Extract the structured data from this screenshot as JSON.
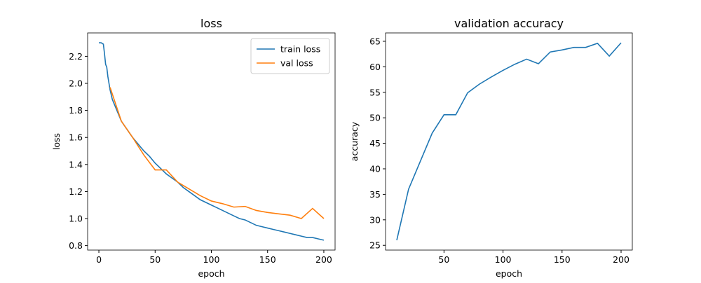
{
  "chart_data": [
    {
      "type": "line",
      "title": "loss",
      "xlabel": "epoch",
      "ylabel": "loss",
      "xlim": [
        -10,
        210
      ],
      "xticks": [
        0,
        50,
        100,
        150,
        200
      ],
      "ylim": [
        0.767,
        2.373
      ],
      "yticks": [
        0.8,
        {
          "value": 1,
          "label": "1.0"
        },
        1.2,
        1.4,
        1.6,
        1.8,
        {
          "value": 2,
          "label": "2.0"
        },
        2.2
      ],
      "legend": "upper right",
      "series": [
        {
          "name": "train loss",
          "color": "#1f77b4",
          "x": [
            0,
            2,
            4,
            5,
            6,
            7,
            8,
            10,
            12,
            15,
            20,
            25,
            30,
            35,
            40,
            45,
            50,
            55,
            60,
            65,
            70,
            75,
            80,
            85,
            90,
            95,
            100,
            105,
            110,
            115,
            120,
            125,
            130,
            135,
            140,
            145,
            150,
            155,
            160,
            165,
            170,
            175,
            180,
            185,
            190,
            195,
            200
          ],
          "values": [
            2.3,
            2.3,
            2.29,
            2.22,
            2.14,
            2.12,
            2.05,
            1.95,
            1.88,
            1.82,
            1.72,
            1.66,
            1.6,
            1.55,
            1.5,
            1.46,
            1.41,
            1.37,
            1.33,
            1.3,
            1.27,
            1.23,
            1.2,
            1.17,
            1.14,
            1.12,
            1.1,
            1.08,
            1.06,
            1.04,
            1.02,
            1.0,
            0.99,
            0.97,
            0.95,
            0.94,
            0.93,
            0.92,
            0.91,
            0.9,
            0.89,
            0.88,
            0.87,
            0.86,
            0.86,
            0.85,
            0.84
          ]
        },
        {
          "name": "val loss",
          "color": "#ff7f0e",
          "x": [
            10,
            20,
            30,
            40,
            50,
            60,
            70,
            80,
            90,
            100,
            110,
            120,
            130,
            140,
            150,
            160,
            170,
            180,
            190,
            200
          ],
          "values": [
            1.97,
            1.72,
            1.6,
            1.47,
            1.36,
            1.36,
            1.27,
            1.22,
            1.17,
            1.13,
            1.11,
            1.085,
            1.09,
            1.06,
            1.045,
            1.035,
            1.025,
            1.0,
            1.075,
            1.0
          ]
        }
      ]
    },
    {
      "type": "line",
      "title": "validation accuracy",
      "xlabel": "epoch",
      "ylabel": "accuracy",
      "xlim": [
        0.5,
        209.5
      ],
      "xticks": [
        50,
        100,
        150,
        200
      ],
      "ylim": [
        24.07,
        66.64
      ],
      "yticks": [
        25,
        30,
        35,
        40,
        45,
        50,
        55,
        60,
        65
      ],
      "series": [
        {
          "color": "#1f77b4",
          "x": [
            10,
            20,
            30,
            40,
            50,
            60,
            70,
            80,
            90,
            100,
            110,
            120,
            130,
            140,
            150,
            160,
            170,
            180,
            190,
            200
          ],
          "values": [
            26,
            36,
            41.5,
            47,
            50.6,
            50.6,
            54.9,
            56.6,
            58.0,
            59.3,
            60.5,
            61.5,
            60.6,
            62.9,
            63.3,
            63.8,
            63.8,
            64.6,
            62.1,
            64.7
          ]
        }
      ]
    }
  ]
}
